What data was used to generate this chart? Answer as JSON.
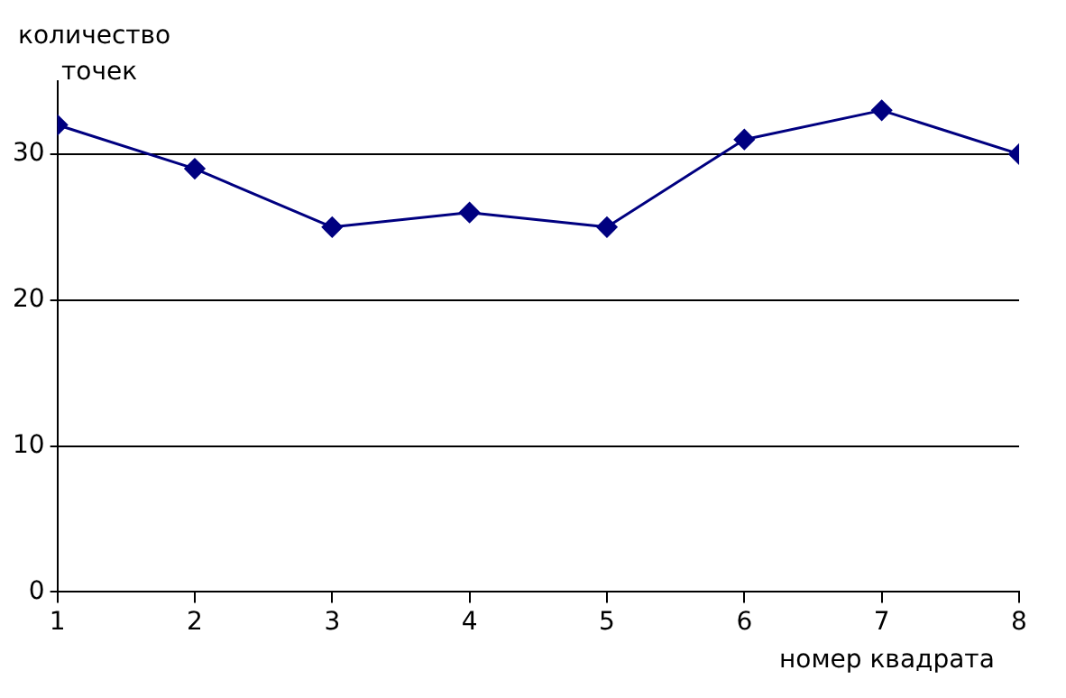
{
  "chart_data": {
    "type": "line",
    "ylabel": "количество\nточек",
    "xlabel": "номер квадрата",
    "x": [
      1,
      2,
      3,
      4,
      5,
      6,
      7,
      8
    ],
    "series": [
      {
        "color": "#000080",
        "values": [
          32,
          29,
          25,
          26,
          25,
          31,
          33,
          30
        ]
      }
    ],
    "xlim": [
      1,
      8
    ],
    "xticks": [
      1,
      2,
      3,
      4,
      5,
      6,
      7,
      8
    ],
    "ylim": [
      0,
      35
    ],
    "yticks": [
      0,
      10,
      20,
      30
    ],
    "grid": "y",
    "legend": false,
    "marker": "diamond",
    "line_style": "solid"
  }
}
